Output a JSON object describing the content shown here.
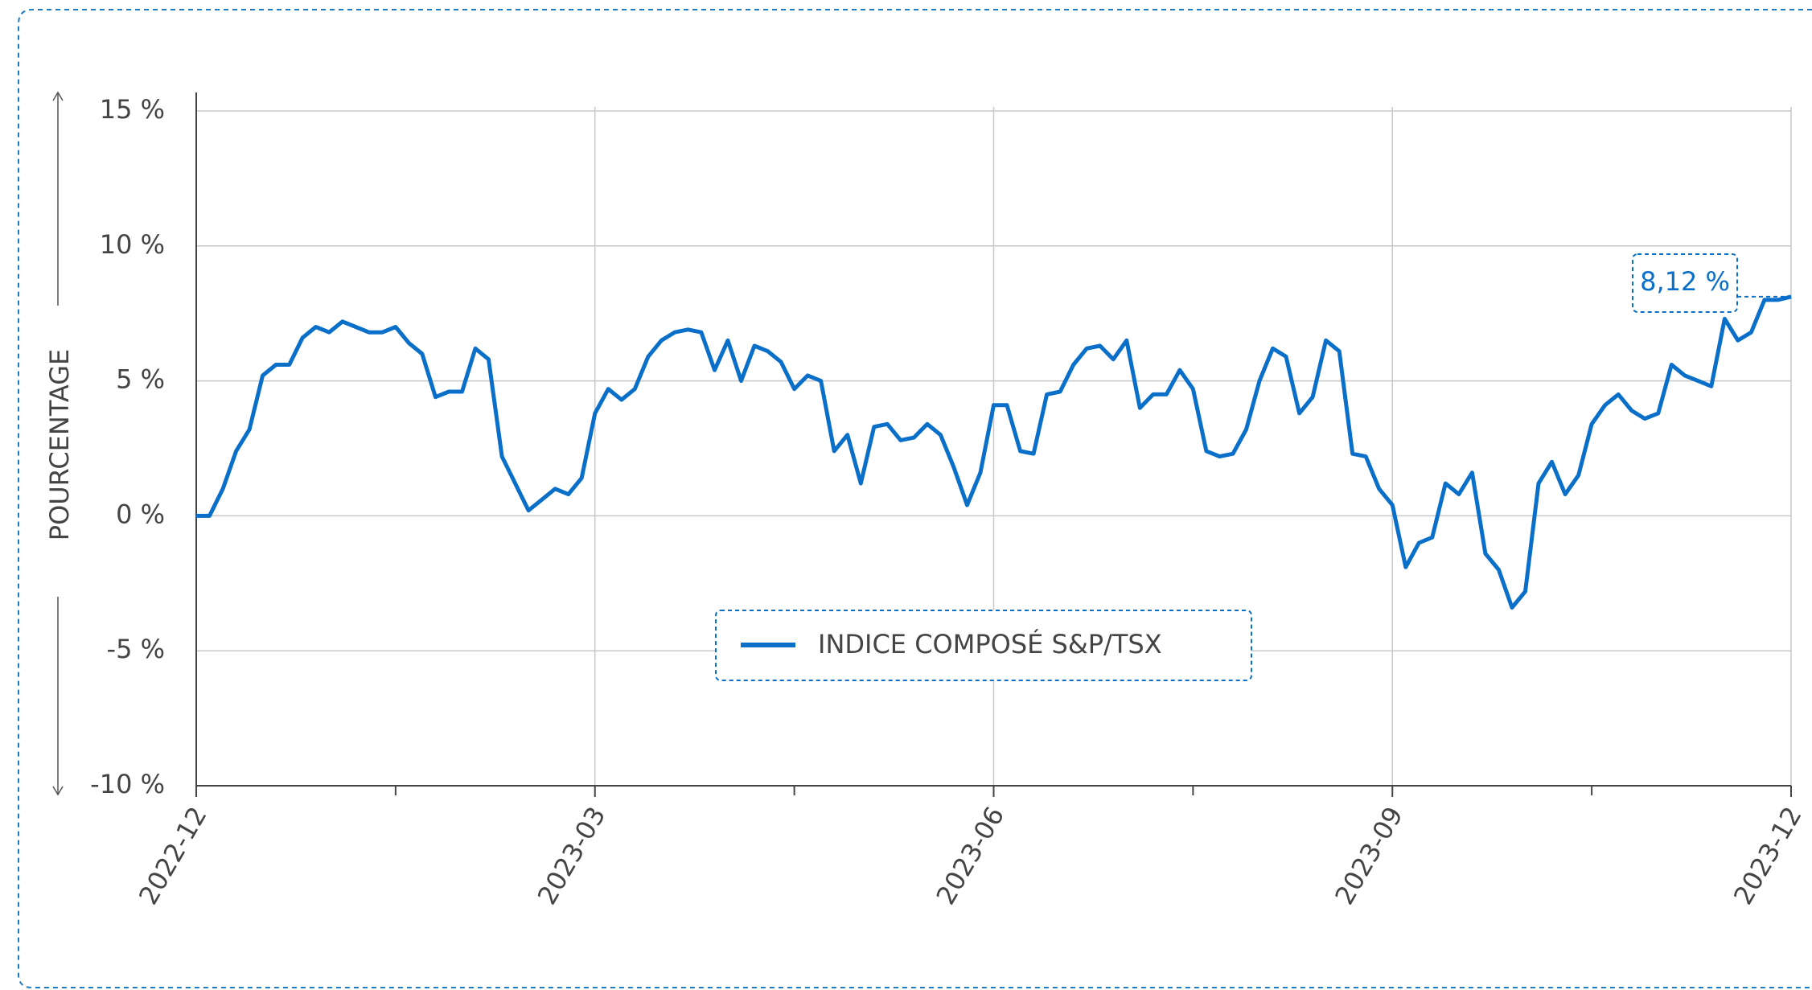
{
  "chart_data": {
    "type": "line",
    "y_label": "POURCENTAGE",
    "categories": [
      "2022-12",
      null,
      null,
      null,
      null,
      null,
      null,
      null,
      null,
      null,
      null,
      null,
      null,
      null,
      null,
      null,
      null,
      null,
      null,
      null,
      null,
      null,
      null,
      null,
      null,
      null,
      null,
      null,
      null,
      null,
      "2023-03",
      null,
      null,
      null,
      null,
      null,
      null,
      null,
      null,
      null,
      null,
      null,
      null,
      null,
      null,
      null,
      null,
      null,
      null,
      null,
      null,
      null,
      null,
      null,
      null,
      null,
      null,
      null,
      null,
      null,
      "2023-06",
      null,
      null,
      null,
      null,
      null,
      null,
      null,
      null,
      null,
      null,
      null,
      null,
      null,
      null,
      null,
      null,
      null,
      null,
      null,
      null,
      null,
      null,
      null,
      null,
      null,
      null,
      null,
      null,
      null,
      "2023-09",
      null,
      null,
      null,
      null,
      null,
      null,
      null,
      null,
      null,
      null,
      null,
      null,
      null,
      null,
      null,
      null,
      null,
      null,
      null,
      null,
      null,
      null,
      null,
      null,
      null,
      null,
      null,
      null,
      null,
      "2023-12"
    ],
    "series": [
      {
        "name": "INDICE COMPOSÉ S&P/TSX",
        "color": "#0a6fc9",
        "values": [
          0,
          0,
          1.0,
          2.4,
          3.2,
          5.2,
          5.6,
          5.6,
          6.6,
          7.0,
          6.8,
          7.2,
          7.0,
          6.8,
          6.8,
          7.0,
          6.4,
          6.0,
          4.4,
          4.6,
          4.6,
          6.2,
          5.8,
          2.2,
          1.2,
          0.2,
          0.6,
          1.0,
          0.8,
          1.4,
          3.8,
          4.7,
          4.3,
          4.7,
          5.9,
          6.5,
          6.8,
          6.9,
          6.8,
          5.4,
          6.5,
          5.0,
          6.3,
          6.1,
          5.7,
          4.7,
          5.2,
          5.0,
          2.4,
          3.0,
          1.2,
          3.3,
          3.4,
          2.8,
          2.9,
          3.4,
          3.0,
          1.8,
          0.4,
          1.6,
          4.1,
          4.1,
          2.4,
          2.3,
          4.5,
          4.6,
          5.6,
          6.2,
          6.3,
          5.8,
          6.5,
          4.0,
          4.5,
          4.5,
          5.4,
          4.7,
          2.4,
          2.2,
          2.3,
          3.2,
          5.0,
          6.2,
          5.9,
          3.8,
          4.4,
          6.5,
          6.1,
          2.3,
          2.2,
          1.0,
          0.4,
          -1.9,
          -1.0,
          -0.8,
          1.2,
          0.8,
          1.6,
          -1.4,
          -2.0,
          -3.4,
          -2.8,
          1.2,
          2.0,
          0.8,
          1.5,
          3.4,
          4.1,
          4.5,
          3.9,
          3.6,
          3.8,
          5.6,
          5.2,
          5.0,
          4.8,
          7.3,
          6.5,
          6.8,
          8.0,
          8.0,
          8.12
        ]
      }
    ],
    "annotation": "8,12 %",
    "ylim": [
      -10,
      15
    ],
    "yticks": [
      {
        "value": -10,
        "label": "-10 %"
      },
      {
        "value": -5,
        "label": "-5 %"
      },
      {
        "value": 0,
        "label": "0 %"
      },
      {
        "value": 5,
        "label": "5 %"
      },
      {
        "value": 10,
        "label": "10 %"
      },
      {
        "value": 15,
        "label": "15 %"
      }
    ],
    "grid": true
  }
}
